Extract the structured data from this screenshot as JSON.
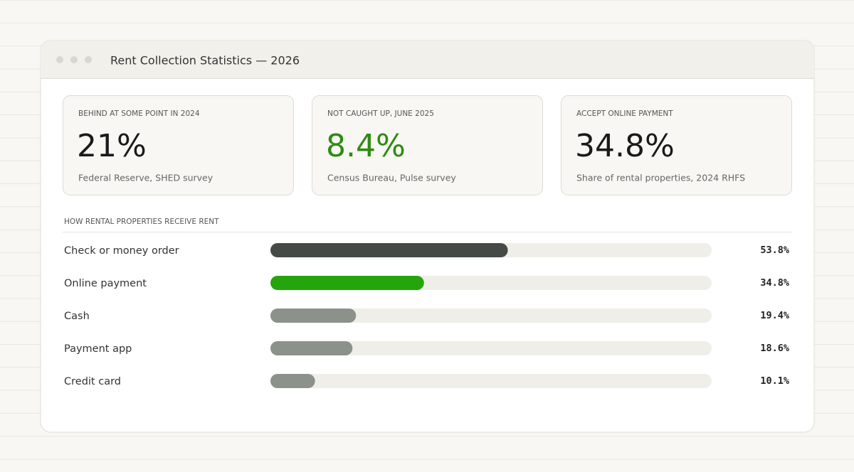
{
  "header": {
    "title": "Rent Collection Statistics — 2026"
  },
  "cards": [
    {
      "label": "BEHIND AT SOME POINT IN 2024",
      "value": "21%",
      "note": "Federal Reserve, SHED survey"
    },
    {
      "label": "NOT CAUGHT UP, JUNE 2025",
      "value": "8.4%",
      "note": "Census Bureau, Pulse survey"
    },
    {
      "label": "ACCEPT ONLINE PAYMENT",
      "value": "34.8%",
      "note": "Share of rental properties, 2024 RHFS"
    }
  ],
  "chart_data": {
    "type": "bar",
    "orientation": "horizontal",
    "title": "HOW RENTAL PROPERTIES RECEIVE RENT",
    "categories": [
      "Check or money order",
      "Online payment",
      "Cash",
      "Payment app",
      "Credit card"
    ],
    "values": [
      53.8,
      34.8,
      19.4,
      18.6,
      10.1
    ],
    "value_labels": [
      "53.8%",
      "34.8%",
      "19.4%",
      "18.6%",
      "10.1%"
    ],
    "colors": [
      "#454a47",
      "#24a50b",
      "#8c918c",
      "#8c918c",
      "#8c918c"
    ],
    "xlim": [
      0,
      100
    ]
  }
}
